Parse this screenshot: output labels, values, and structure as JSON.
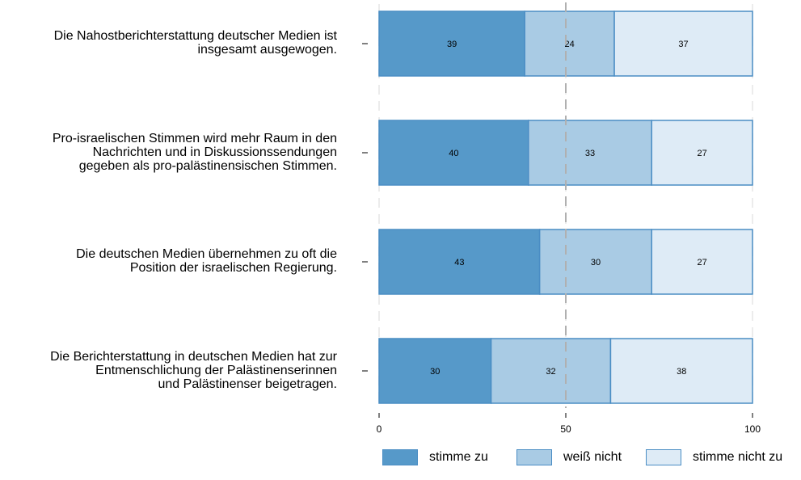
{
  "chart_data": {
    "type": "bar",
    "orientation": "horizontal",
    "stacked": true,
    "categories": [
      [
        "Die Nahostberichterstattung deutscher Medien ist",
        "insgesamt ausgewogen."
      ],
      [
        "Pro-israelischen Stimmen wird mehr Raum in den",
        "Nachrichten und in Diskussionssendungen",
        "gegeben als pro-palästinensischen Stimmen."
      ],
      [
        "Die deutschen Medien übernehmen zu oft die",
        "Position der israelischen Regierung."
      ],
      [
        "Die Berichterstattung in deutschen Medien hat zur",
        "Entmenschlichung der Palästinenserinnen",
        "und Palästinenser beigetragen."
      ]
    ],
    "series": [
      {
        "name": "stimme zu",
        "values": [
          39,
          40,
          43,
          30
        ],
        "color": "#5699c9"
      },
      {
        "name": "weiß nicht",
        "values": [
          24,
          33,
          30,
          32
        ],
        "color": "#a9cbe4"
      },
      {
        "name": "stimme nicht zu",
        "values": [
          37,
          27,
          27,
          38
        ],
        "color": "#deebf6"
      }
    ],
    "xlim": [
      0,
      100
    ],
    "xticks": [
      "0",
      "50",
      "100"
    ],
    "reference_line": 50,
    "grid": true,
    "legend_position": "bottom"
  }
}
